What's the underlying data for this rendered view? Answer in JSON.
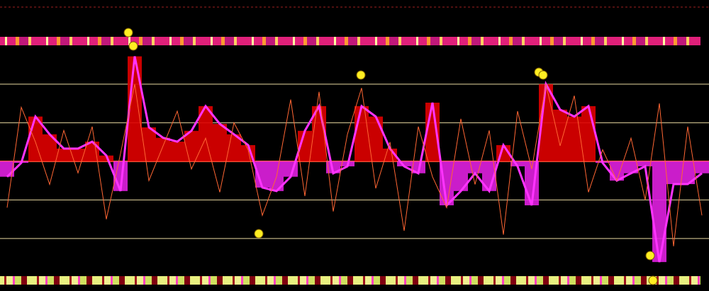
{
  "chart_data": {
    "type": "bar",
    "ylim": [
      -3.36,
      4.18
    ],
    "yticks": [
      -2,
      -1,
      0,
      1,
      2
    ],
    "grid": true,
    "colors": {
      "positive": "#e00000",
      "negative": "#e020e0",
      "grid": "#e8d8a0",
      "zero": "#ff6040"
    },
    "series": [
      {
        "color": "#ff33ff",
        "values": [
          -0.4,
          -0.04,
          1.16,
          0.7,
          0.33,
          0.33,
          0.51,
          0.15,
          -0.77,
          2.72,
          0.88,
          0.61,
          0.51,
          0.79,
          1.43,
          0.97,
          0.7,
          0.42,
          -0.68,
          -0.77,
          -0.4,
          0.79,
          1.43,
          -0.31,
          -0.13,
          1.43,
          1.16,
          0.33,
          -0.13,
          -0.31,
          1.52,
          -1.14,
          -0.77,
          -0.31,
          -0.77,
          0.42,
          -0.13,
          -1.14,
          2.0,
          1.34,
          1.16,
          1.43,
          -0.04,
          -0.5,
          -0.31,
          -0.13,
          -2.61,
          -0.59,
          -0.59,
          -0.31
        ]
      },
      {
        "color": "#ff6633",
        "values": [
          -1.2,
          1.4,
          0.5,
          -0.6,
          0.8,
          -0.3,
          0.9,
          -1.5,
          0.2,
          2.0,
          -0.5,
          0.4,
          1.3,
          -0.2,
          0.6,
          -0.8,
          1.0,
          0.3,
          -1.4,
          -0.4,
          1.6,
          -0.9,
          1.8,
          -1.3,
          0.7,
          1.9,
          -0.7,
          0.5,
          -1.8,
          0.9,
          -0.4,
          -1.2,
          1.1,
          -0.6,
          0.8,
          -1.9,
          1.3,
          -0.2,
          2.0,
          0.4,
          1.7,
          -0.8,
          0.3,
          -0.5,
          0.6,
          -1.0,
          1.5,
          -2.2,
          0.9,
          -1.4
        ]
      }
    ]
  }
}
